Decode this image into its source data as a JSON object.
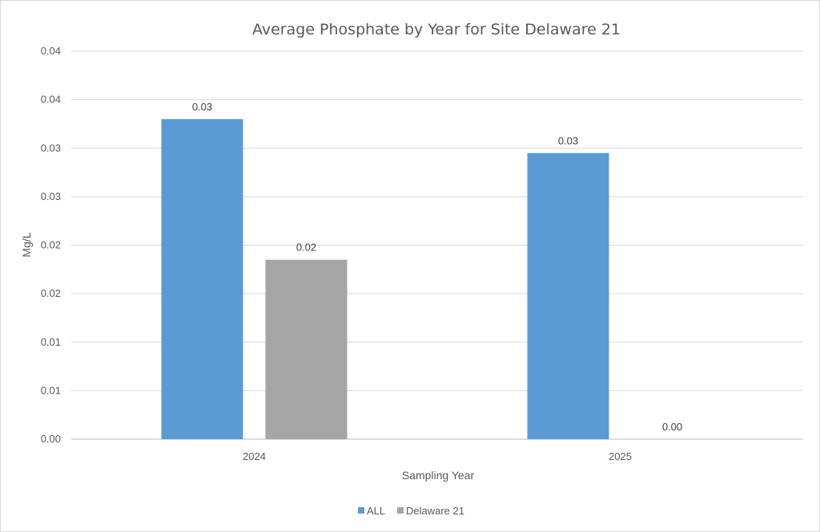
{
  "chart_data": {
    "type": "bar",
    "title": "Average Phosphate by Year for Site Delaware 21",
    "xlabel": "Sampling Year",
    "ylabel": "Mg/L",
    "categories": [
      "2024",
      "2025"
    ],
    "series": [
      {
        "name": "ALL",
        "color": "#5b9bd5",
        "values": [
          0.033,
          0.0295
        ],
        "labels": [
          "0.03",
          "0.03"
        ]
      },
      {
        "name": "Delaware 21",
        "color": "#a5a5a5",
        "values": [
          0.0185,
          0.0
        ],
        "labels": [
          "0.02",
          "0.00"
        ]
      }
    ],
    "ylim": [
      0,
      0.04
    ],
    "yticks": [
      0,
      0.005,
      0.01,
      0.015,
      0.02,
      0.025,
      0.03,
      0.035,
      0.04
    ],
    "ytick_labels": [
      "0.00",
      "0.01",
      "0.01",
      "0.02",
      "0.02",
      "0.03",
      "0.03",
      "0.04",
      "0.04"
    ],
    "grid": true,
    "legend_position": "bottom"
  }
}
